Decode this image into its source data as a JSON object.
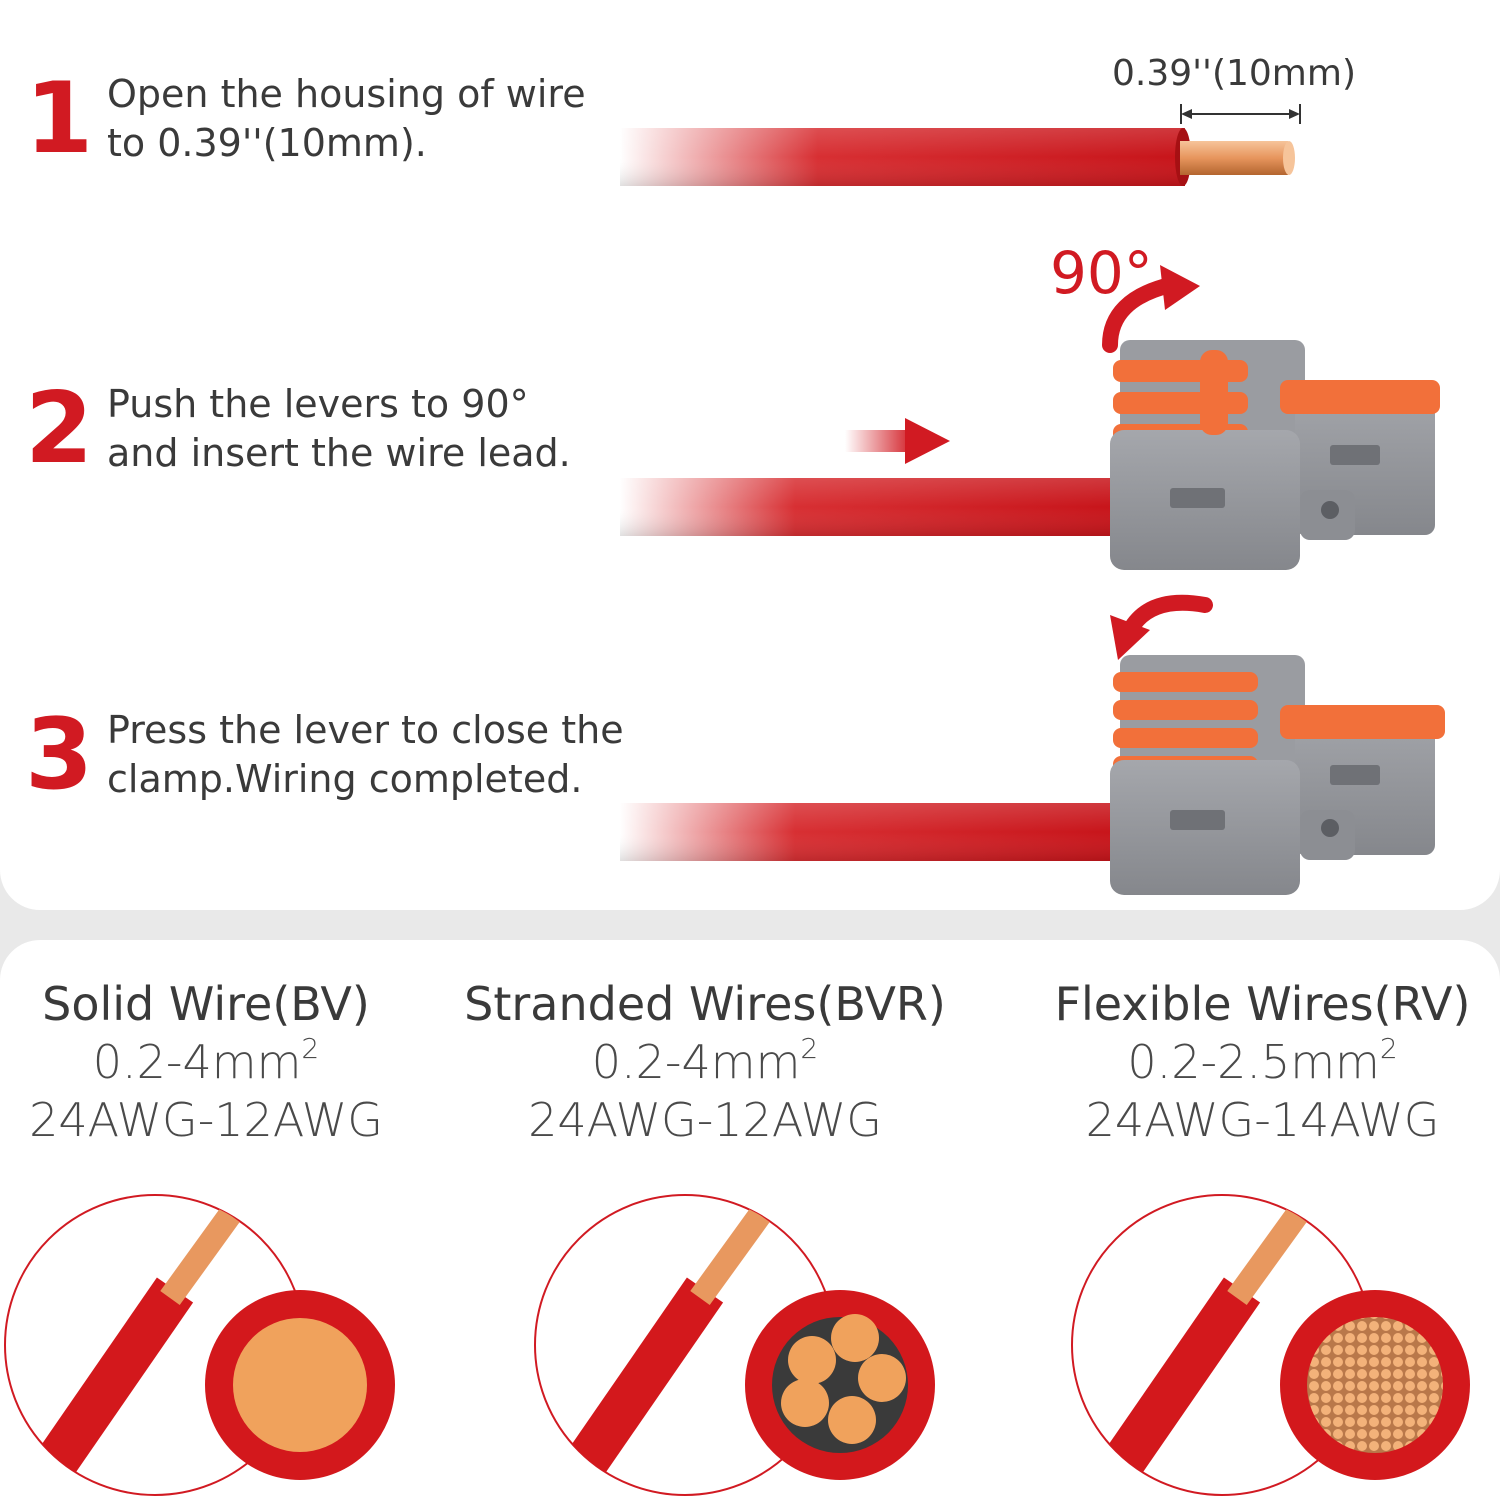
{
  "steps": [
    {
      "number": "1",
      "lines": [
        "Open the housing of wire",
        "to 0.39''(10mm)."
      ]
    },
    {
      "number": "2",
      "lines": [
        "Push the levers to 90°",
        "and insert the wire lead."
      ]
    },
    {
      "number": "3",
      "lines": [
        "Press the lever to close the",
        "clamp.Wiring completed."
      ]
    }
  ],
  "strip_length_label": "0.39''(10mm)",
  "angle_label": "90°",
  "wire_types": [
    {
      "name": "Solid Wire(BV)",
      "section": "0.2-4mm",
      "section_unit_power": "2",
      "awg": "24AWG-12AWG",
      "core": "solid"
    },
    {
      "name": "Stranded Wires(BVR)",
      "section": "0.2-4mm",
      "section_unit_power": "2",
      "awg": "24AWG-12AWG",
      "core": "stranded"
    },
    {
      "name": "Flexible Wires(RV)",
      "section": "0.2-2.5mm",
      "section_unit_power": "2",
      "awg": "24AWG-14AWG",
      "core": "flexible"
    }
  ],
  "colors": {
    "accent_red": "#d11a22",
    "wire_red": "#d3181c",
    "copper": "#f0a25c",
    "connector_gray": "#8f9196",
    "lever_orange": "#f2703a"
  }
}
